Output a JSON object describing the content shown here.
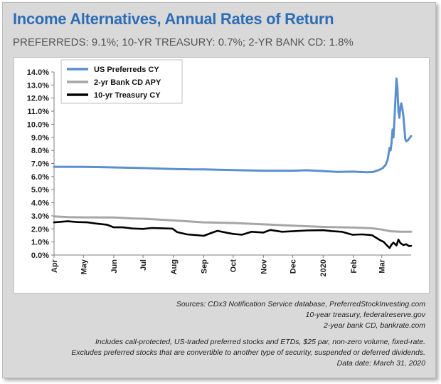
{
  "header": {
    "title": "Income Alternatives, Annual Rates of Return",
    "subtitle": "PREFERREDS: 9.1%; 10-YR TREASURY: 0.7%; 2-YR BANK CD: 1.8%"
  },
  "notes": {
    "sources": [
      "Sources: CDx3 Notification Service database, PreferredStockInvesting.com",
      "10-year treasury, federalreserve.gov",
      "2-year bank CD, bankrate.com"
    ],
    "criteria": [
      "Includes call-protected, US-traded preferred stocks and ETDs, $25 par, non-zero volume, fixed-rate.",
      "Excludes preferred stocks that are convertible to another type of security, suspended or deferred dividends.",
      "Data date: March 31, 2020"
    ]
  },
  "chart_data": {
    "type": "line",
    "title": "Income Alternatives, Annual Rates of Return",
    "x_tick_labels": [
      "Apr",
      "May",
      "Jun",
      "Jul",
      "Aug",
      "Sep",
      "Oct",
      "Nov",
      "Dec",
      "2020",
      "Feb",
      "Mar"
    ],
    "x_range": [
      "2019-04-01",
      "2020-03-31"
    ],
    "ylim": [
      0,
      14
    ],
    "y_tick_labels": [
      "0.0%",
      "1.0%",
      "2.0%",
      "3.0%",
      "4.0%",
      "5.0%",
      "6.0%",
      "7.0%",
      "8.0%",
      "9.0%",
      "10.0%",
      "11.0%",
      "12.0%",
      "13.0%",
      "14.0%"
    ],
    "legend_position": "top-left",
    "grid": false,
    "series": [
      {
        "name": "US Preferreds CY",
        "color": "#5b8fcf",
        "points": [
          [
            "2019-04-01",
            6.75
          ],
          [
            "2019-05-01",
            6.74
          ],
          [
            "2019-05-20",
            6.72
          ],
          [
            "2019-06-01",
            6.7
          ],
          [
            "2019-07-01",
            6.65
          ],
          [
            "2019-08-01",
            6.58
          ],
          [
            "2019-08-20",
            6.55
          ],
          [
            "2019-09-01",
            6.55
          ],
          [
            "2019-10-01",
            6.5
          ],
          [
            "2019-11-01",
            6.45
          ],
          [
            "2019-12-01",
            6.45
          ],
          [
            "2019-12-15",
            6.48
          ],
          [
            "2020-01-01",
            6.42
          ],
          [
            "2020-01-15",
            6.36
          ],
          [
            "2020-02-01",
            6.38
          ],
          [
            "2020-02-15",
            6.33
          ],
          [
            "2020-02-21",
            6.35
          ],
          [
            "2020-02-27",
            6.5
          ],
          [
            "2020-03-02",
            6.65
          ],
          [
            "2020-03-05",
            6.9
          ],
          [
            "2020-03-07",
            7.3
          ],
          [
            "2020-03-09",
            8.2
          ],
          [
            "2020-03-10",
            8.0
          ],
          [
            "2020-03-11",
            8.6
          ],
          [
            "2020-03-12",
            9.6
          ],
          [
            "2020-03-13",
            9.0
          ],
          [
            "2020-03-14",
            10.4
          ],
          [
            "2020-03-15",
            12.0
          ],
          [
            "2020-03-16",
            13.5
          ],
          [
            "2020-03-17",
            12.8
          ],
          [
            "2020-03-18",
            11.0
          ],
          [
            "2020-03-19",
            10.5
          ],
          [
            "2020-03-20",
            11.3
          ],
          [
            "2020-03-21",
            11.6
          ],
          [
            "2020-03-22",
            11.2
          ],
          [
            "2020-03-23",
            10.7
          ],
          [
            "2020-03-24",
            9.8
          ],
          [
            "2020-03-25",
            8.9
          ],
          [
            "2020-03-26",
            8.7
          ],
          [
            "2020-03-28",
            8.8
          ],
          [
            "2020-03-30",
            9.0
          ],
          [
            "2020-03-31",
            9.1
          ]
        ]
      },
      {
        "name": "2-yr Bank CD APY",
        "color": "#a6a6a6",
        "points": [
          [
            "2019-04-01",
            2.95
          ],
          [
            "2019-04-15",
            2.9
          ],
          [
            "2019-05-01",
            2.88
          ],
          [
            "2019-06-01",
            2.87
          ],
          [
            "2019-06-20",
            2.8
          ],
          [
            "2019-07-01",
            2.78
          ],
          [
            "2019-08-01",
            2.65
          ],
          [
            "2019-09-01",
            2.5
          ],
          [
            "2019-10-01",
            2.45
          ],
          [
            "2019-11-01",
            2.35
          ],
          [
            "2019-12-01",
            2.25
          ],
          [
            "2020-01-01",
            2.15
          ],
          [
            "2020-02-01",
            2.1
          ],
          [
            "2020-02-20",
            2.05
          ],
          [
            "2020-03-01",
            1.95
          ],
          [
            "2020-03-10",
            1.82
          ],
          [
            "2020-03-20",
            1.78
          ],
          [
            "2020-03-31",
            1.78
          ]
        ]
      },
      {
        "name": "10-yr Treasury CY",
        "color": "#000000",
        "points": [
          [
            "2019-04-01",
            2.5
          ],
          [
            "2019-04-15",
            2.58
          ],
          [
            "2019-04-25",
            2.52
          ],
          [
            "2019-05-05",
            2.5
          ],
          [
            "2019-05-15",
            2.4
          ],
          [
            "2019-05-25",
            2.32
          ],
          [
            "2019-06-01",
            2.12
          ],
          [
            "2019-06-10",
            2.12
          ],
          [
            "2019-06-20",
            2.03
          ],
          [
            "2019-07-01",
            2.0
          ],
          [
            "2019-07-10",
            2.07
          ],
          [
            "2019-07-20",
            2.05
          ],
          [
            "2019-07-31",
            2.02
          ],
          [
            "2019-08-05",
            1.75
          ],
          [
            "2019-08-15",
            1.58
          ],
          [
            "2019-08-25",
            1.52
          ],
          [
            "2019-09-01",
            1.47
          ],
          [
            "2019-09-10",
            1.72
          ],
          [
            "2019-09-15",
            1.85
          ],
          [
            "2019-09-25",
            1.7
          ],
          [
            "2019-10-01",
            1.62
          ],
          [
            "2019-10-10",
            1.55
          ],
          [
            "2019-10-20",
            1.78
          ],
          [
            "2019-11-01",
            1.72
          ],
          [
            "2019-11-08",
            1.92
          ],
          [
            "2019-11-20",
            1.78
          ],
          [
            "2019-12-01",
            1.82
          ],
          [
            "2019-12-15",
            1.88
          ],
          [
            "2020-01-01",
            1.9
          ],
          [
            "2020-01-10",
            1.83
          ],
          [
            "2020-01-20",
            1.78
          ],
          [
            "2020-01-31",
            1.55
          ],
          [
            "2020-02-10",
            1.58
          ],
          [
            "2020-02-20",
            1.52
          ],
          [
            "2020-02-28",
            1.15
          ],
          [
            "2020-03-03",
            1.0
          ],
          [
            "2020-03-06",
            0.76
          ],
          [
            "2020-03-09",
            0.54
          ],
          [
            "2020-03-11",
            0.8
          ],
          [
            "2020-03-13",
            0.95
          ],
          [
            "2020-03-16",
            0.73
          ],
          [
            "2020-03-18",
            1.18
          ],
          [
            "2020-03-20",
            0.92
          ],
          [
            "2020-03-23",
            0.76
          ],
          [
            "2020-03-26",
            0.83
          ],
          [
            "2020-03-29",
            0.68
          ],
          [
            "2020-03-31",
            0.7
          ]
        ]
      }
    ]
  }
}
